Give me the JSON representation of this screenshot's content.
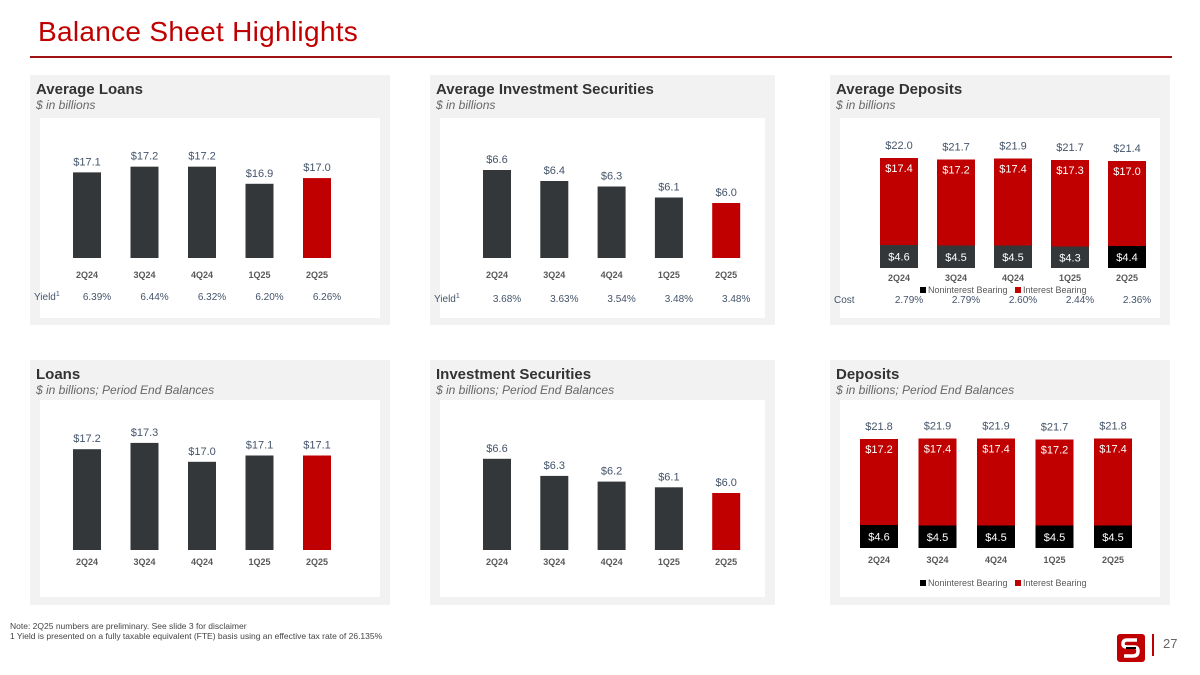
{
  "page": {
    "title": "Balance Sheet Highlights",
    "page_number": "27",
    "notes": [
      "Note:  2Q25 numbers are preliminary. See slide 3 for disclaimer",
      "1  Yield is presented on a fully taxable equivalent (FTE) basis using an effective tax rate of 26.135%"
    ]
  },
  "colors": {
    "dark_bar": "#333739",
    "highlight_bar": "#c00000",
    "interest_bearing": "#c00000",
    "noninterest_bearing": "#333739",
    "noninterest_latest": "#000000",
    "label": "#44546a"
  },
  "chart_data": [
    {
      "type": "bar",
      "title": "Average Loans",
      "subtitle": "$ in billions",
      "categories": [
        "2Q24",
        "3Q24",
        "4Q24",
        "1Q25",
        "2Q25"
      ],
      "values": [
        17.1,
        17.2,
        17.2,
        16.9,
        17.0
      ],
      "labels": [
        "$17.1",
        "$17.2",
        "$17.2",
        "$16.9",
        "$17.0"
      ],
      "ylim": [
        15.6,
        18.0
      ],
      "highlight_last": true,
      "extra_row": {
        "label": "Yield",
        "sup": "1",
        "values": [
          "6.39%",
          "6.44%",
          "6.32%",
          "6.20%",
          "6.26%"
        ]
      }
    },
    {
      "type": "bar",
      "title": "Average Investment Securities",
      "subtitle": "$ in billions",
      "categories": [
        "2Q24",
        "3Q24",
        "4Q24",
        "1Q25",
        "2Q25"
      ],
      "values": [
        6.6,
        6.4,
        6.3,
        6.1,
        6.0
      ],
      "labels": [
        "$6.6",
        "$6.4",
        "$6.3",
        "$6.1",
        "$6.0"
      ],
      "ylim": [
        5.0,
        7.0
      ],
      "highlight_last": true,
      "extra_row": {
        "label": "Yield",
        "sup": "1",
        "values": [
          "3.68%",
          "3.63%",
          "3.54%",
          "3.48%",
          "3.48%"
        ]
      }
    },
    {
      "type": "stacked_bar",
      "title": "Average Deposits",
      "subtitle": "$ in billions",
      "categories": [
        "2Q24",
        "3Q24",
        "4Q24",
        "1Q25",
        "2Q25"
      ],
      "ylim": [
        0,
        25
      ],
      "series": [
        {
          "name": "Noninterest Bearing",
          "values": [
            4.6,
            4.5,
            4.5,
            4.3,
            4.4
          ],
          "labels": [
            "$4.6",
            "$4.5",
            "$4.5",
            "$4.3",
            "$4.4"
          ]
        },
        {
          "name": "Interest Bearing",
          "values": [
            17.4,
            17.2,
            17.4,
            17.3,
            17.0
          ],
          "labels": [
            "$17.4",
            "$17.2",
            "$17.4",
            "$17.3",
            "$17.0"
          ]
        }
      ],
      "totals": [
        "$22.0",
        "$21.7",
        "$21.9",
        "$21.7",
        "$21.4"
      ],
      "legend": "bottom",
      "extra_row": {
        "label": "Cost",
        "sup": "",
        "values": [
          "2.79%",
          "2.79%",
          "2.60%",
          "2.44%",
          "2.36%"
        ]
      }
    },
    {
      "type": "bar",
      "title": "Loans",
      "subtitle": "$ in billions; Period End Balances",
      "categories": [
        "2Q24",
        "3Q24",
        "4Q24",
        "1Q25",
        "2Q25"
      ],
      "values": [
        17.2,
        17.3,
        17.0,
        17.1,
        17.1
      ],
      "labels": [
        "$17.2",
        "$17.3",
        "$17.0",
        "$17.1",
        "$17.1"
      ],
      "ylim": [
        15.6,
        17.6
      ],
      "highlight_last": true
    },
    {
      "type": "bar",
      "title": "Investment Securities",
      "subtitle": "$ in billions; Period End Balances",
      "categories": [
        "2Q24",
        "3Q24",
        "4Q24",
        "1Q25",
        "2Q25"
      ],
      "values": [
        6.6,
        6.3,
        6.2,
        6.1,
        6.0
      ],
      "labels": [
        "$6.6",
        "$6.3",
        "$6.2",
        "$6.1",
        "$6.0"
      ],
      "ylim": [
        5.0,
        7.0
      ],
      "highlight_last": true
    },
    {
      "type": "stacked_bar",
      "title": "Deposits",
      "subtitle": "$ in billions; Period End Balances",
      "categories": [
        "2Q24",
        "3Q24",
        "4Q24",
        "1Q25",
        "2Q25"
      ],
      "ylim": [
        0,
        25
      ],
      "series": [
        {
          "name": "Noninterest Bearing",
          "values": [
            4.6,
            4.5,
            4.5,
            4.5,
            4.5
          ],
          "labels": [
            "$4.6",
            "$4.5",
            "$4.5",
            "$4.5",
            "$4.5"
          ]
        },
        {
          "name": "Interest Bearing",
          "values": [
            17.2,
            17.4,
            17.4,
            17.2,
            17.4
          ],
          "labels": [
            "$17.2",
            "$17.4",
            "$17.4",
            "$17.2",
            "$17.4"
          ]
        }
      ],
      "totals": [
        "$21.8",
        "$21.9",
        "$21.9",
        "$21.7",
        "$21.8"
      ],
      "legend": "bottom"
    }
  ]
}
